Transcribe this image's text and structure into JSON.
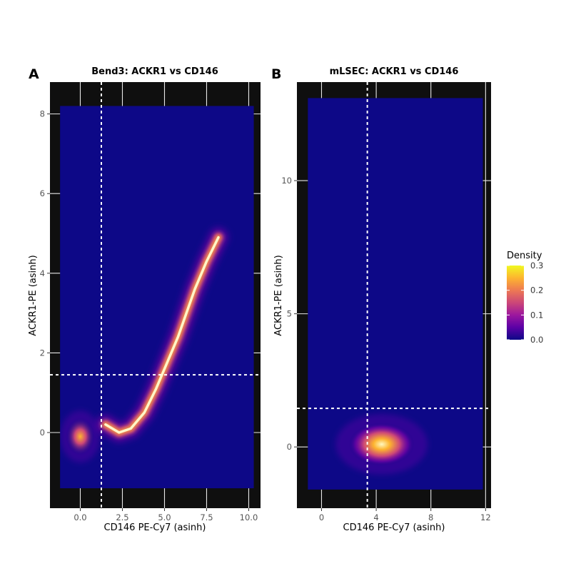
{
  "chart_data": [
    {
      "type": "heatmap",
      "panel_letter": "A",
      "title": "Bend3: ACKR1 vs CD146",
      "xlabel": "CD146 PE-Cy7 (asinh)",
      "ylabel": "ACKR1-PE (asinh)",
      "xlim": [
        -1.8,
        10.7
      ],
      "ylim": [
        -1.9,
        8.8
      ],
      "xticks": [
        0.0,
        2.5,
        5.0,
        7.5,
        10.0
      ],
      "xtick_labels": [
        "0.0",
        "2.5",
        "5.0",
        "7.5",
        "10.0"
      ],
      "yticks": [
        0,
        2,
        4,
        6,
        8
      ],
      "ytick_labels": [
        "0",
        "2",
        "4",
        "6",
        "8"
      ],
      "data_xrange": [
        -1.2,
        10.3
      ],
      "data_yrange": [
        -1.4,
        8.2
      ],
      "vline_x": 1.25,
      "hline_y": 1.45,
      "density_features": [
        {
          "shape": "blob",
          "x": 0.0,
          "y": -0.1,
          "peak": 0.12
        },
        {
          "shape": "curve",
          "path": [
            [
              1.5,
              0.2
            ],
            [
              2.3,
              0.0
            ],
            [
              3.0,
              0.1
            ],
            [
              3.8,
              0.5
            ],
            [
              4.5,
              1.1
            ],
            [
              5.2,
              1.8
            ],
            [
              5.8,
              2.4
            ],
            [
              6.3,
              3.0
            ],
            [
              6.8,
              3.6
            ],
            [
              7.5,
              4.3
            ],
            [
              8.2,
              4.9
            ]
          ],
          "peak": 0.3
        }
      ]
    },
    {
      "type": "heatmap",
      "panel_letter": "B",
      "title": "mLSEC: ACKR1 vs CD146",
      "xlabel": "CD146 PE-Cy7 (asinh)",
      "ylabel": "ACKR1-PE (asinh)",
      "xlim": [
        -1.8,
        12.4
      ],
      "ylim": [
        -2.3,
        13.7
      ],
      "xticks": [
        0,
        4,
        8,
        12
      ],
      "xtick_labels": [
        "0",
        "4",
        "8",
        "12"
      ],
      "yticks": [
        0,
        5,
        10
      ],
      "ytick_labels": [
        "0",
        "5",
        "10"
      ],
      "data_xrange": [
        -1.0,
        11.8
      ],
      "data_yrange": [
        -1.6,
        13.1
      ],
      "vline_x": 3.35,
      "hline_y": 1.45,
      "density_features": [
        {
          "shape": "blob",
          "x": 4.4,
          "y": 0.1,
          "sx": 1.5,
          "sy": 0.45,
          "peak": 0.3
        }
      ]
    }
  ],
  "legend": {
    "title": "Density",
    "ticks": [
      0.0,
      0.1,
      0.2,
      0.3
    ],
    "tick_labels": [
      "0.0",
      "0.1",
      "0.2",
      "0.3"
    ],
    "colors": [
      "#0d0887",
      "#5c01a6",
      "#9c179e",
      "#cc4778",
      "#ed7953",
      "#fdb42f",
      "#f0f921"
    ]
  },
  "colors": {
    "panel_background": "#0f0f0f",
    "density_zero": "#0d0887",
    "guide_lines": "#ffffff"
  }
}
